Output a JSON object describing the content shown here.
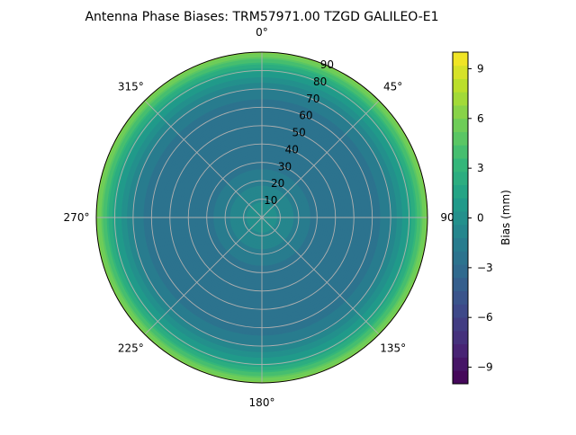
{
  "title": "Antenna Phase Biases: TRM57971.00     TZGD GALILEO-E1",
  "chart_data": {
    "type": "polar-contour",
    "title": "Antenna Phase Biases: TRM57971.00     TZGD GALILEO-E1",
    "azimuth_tick_labels": [
      {
        "angle": 0,
        "label": "0°"
      },
      {
        "angle": 45,
        "label": "45°"
      },
      {
        "angle": 90,
        "label": "90"
      },
      {
        "angle": 135,
        "label": "135°"
      },
      {
        "angle": 180,
        "label": "180°"
      },
      {
        "angle": 225,
        "label": "225°"
      },
      {
        "angle": 270,
        "label": "270°"
      },
      {
        "angle": 315,
        "label": "315°"
      }
    ],
    "radial_ticks": [
      10,
      20,
      30,
      40,
      50,
      60,
      70,
      80,
      90
    ],
    "radial_range": [
      0,
      90
    ],
    "grid": true,
    "colorbar": {
      "label": "Bias (mm)",
      "range": [
        -10,
        10
      ],
      "ticks": [
        -9,
        -6,
        -3,
        0,
        3,
        6,
        9
      ],
      "tick_labels": [
        "−9",
        "−6",
        "−3",
        "0",
        "3",
        "6",
        "9"
      ],
      "levels": 25,
      "colormap": "viridis"
    },
    "radial_profile": [
      {
        "r": 0,
        "bias": 0.0
      },
      {
        "r": 10,
        "bias": -0.5
      },
      {
        "r": 20,
        "bias": -1.5
      },
      {
        "r": 30,
        "bias": -2.3
      },
      {
        "r": 40,
        "bias": -2.6
      },
      {
        "r": 50,
        "bias": -2.7
      },
      {
        "r": 60,
        "bias": -2.4
      },
      {
        "r": 70,
        "bias": -1.3
      },
      {
        "r": 80,
        "bias": 1.5
      },
      {
        "r": 90,
        "bias": 6.5
      }
    ]
  }
}
